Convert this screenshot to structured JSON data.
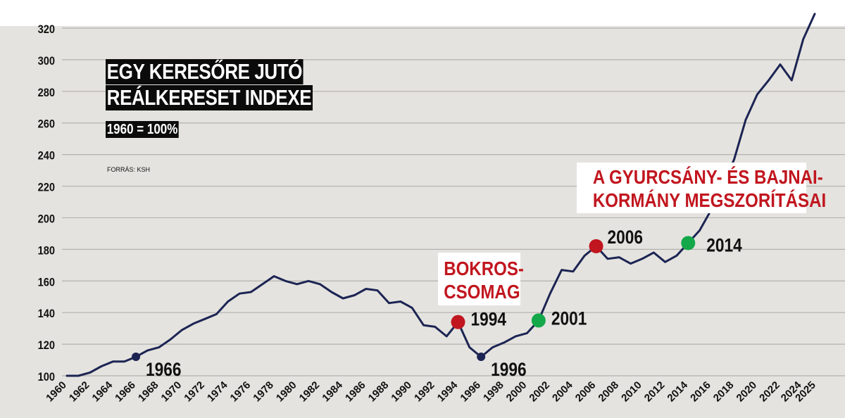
{
  "title_lines": [
    "EGY KERESŐRE JUTÓ",
    "REÁLKERESET INDEXE"
  ],
  "subtitle": "1960 = 100%",
  "source": "FORRÁS: KSH",
  "colors": {
    "line": "#1c2453",
    "red": "#c1161f",
    "green": "#13a84a",
    "navy": "#1c2453",
    "background": "#e4e3df"
  },
  "annotations": {
    "bokros": [
      "BOKROS-",
      "CSOMAG"
    ],
    "gyurcsany": [
      "A GYURCSÁNY- ÉS BAJNAI-",
      "KORMÁNY MEGSZORÍTÁSAI"
    ]
  },
  "chart_data": {
    "type": "line",
    "ylim": [
      100,
      330
    ],
    "yticks": [
      100,
      120,
      140,
      160,
      180,
      200,
      220,
      240,
      260,
      280,
      300,
      320
    ],
    "xlim": [
      1960,
      2025
    ],
    "xticks": [
      1960,
      1962,
      1964,
      1966,
      1968,
      1970,
      1972,
      1974,
      1976,
      1978,
      1980,
      1982,
      1984,
      1986,
      1988,
      1990,
      1992,
      1994,
      1996,
      1998,
      2000,
      2002,
      2004,
      2006,
      2008,
      2010,
      2012,
      2014,
      2016,
      2018,
      2020,
      2022,
      2024,
      2025
    ],
    "x": [
      1960,
      1961,
      1962,
      1963,
      1964,
      1965,
      1966,
      1967,
      1968,
      1969,
      1970,
      1971,
      1972,
      1973,
      1974,
      1975,
      1976,
      1977,
      1978,
      1979,
      1980,
      1981,
      1982,
      1983,
      1984,
      1985,
      1986,
      1987,
      1988,
      1989,
      1990,
      1991,
      1992,
      1993,
      1994,
      1995,
      1996,
      1997,
      1998,
      1999,
      2000,
      2001,
      2002,
      2003,
      2004,
      2005,
      2006,
      2007,
      2008,
      2009,
      2010,
      2011,
      2012,
      2013,
      2014,
      2015,
      2016,
      2017,
      2018,
      2019,
      2020,
      2021,
      2022,
      2023,
      2024,
      2025
    ],
    "values": [
      100,
      100,
      102,
      106,
      109,
      109,
      112,
      116,
      118,
      123,
      129,
      133,
      136,
      139,
      147,
      152,
      153,
      158,
      163,
      160,
      158,
      160,
      158,
      153,
      149,
      151,
      155,
      154,
      146,
      147,
      143,
      132,
      131,
      125,
      134,
      118,
      112,
      118,
      121,
      125,
      127,
      135,
      152,
      167,
      166,
      176,
      182,
      174,
      175,
      171,
      174,
      178,
      172,
      176,
      184,
      192,
      205,
      220,
      237,
      262,
      278,
      287,
      297,
      287,
      313,
      329
    ],
    "markers": [
      {
        "year": 1966,
        "value": 112,
        "label": "1966",
        "color": "navy",
        "size": "small"
      },
      {
        "year": 1994,
        "value": 134,
        "label": "1994",
        "color": "red",
        "size": "large"
      },
      {
        "year": 1996,
        "value": 112,
        "label": "1996",
        "color": "navy",
        "size": "small"
      },
      {
        "year": 2001,
        "value": 135,
        "label": "2001",
        "color": "green",
        "size": "large"
      },
      {
        "year": 2006,
        "value": 182,
        "label": "2006",
        "color": "red",
        "size": "large"
      },
      {
        "year": 2014,
        "value": 184,
        "label": "2014",
        "color": "green",
        "size": "large"
      }
    ]
  }
}
